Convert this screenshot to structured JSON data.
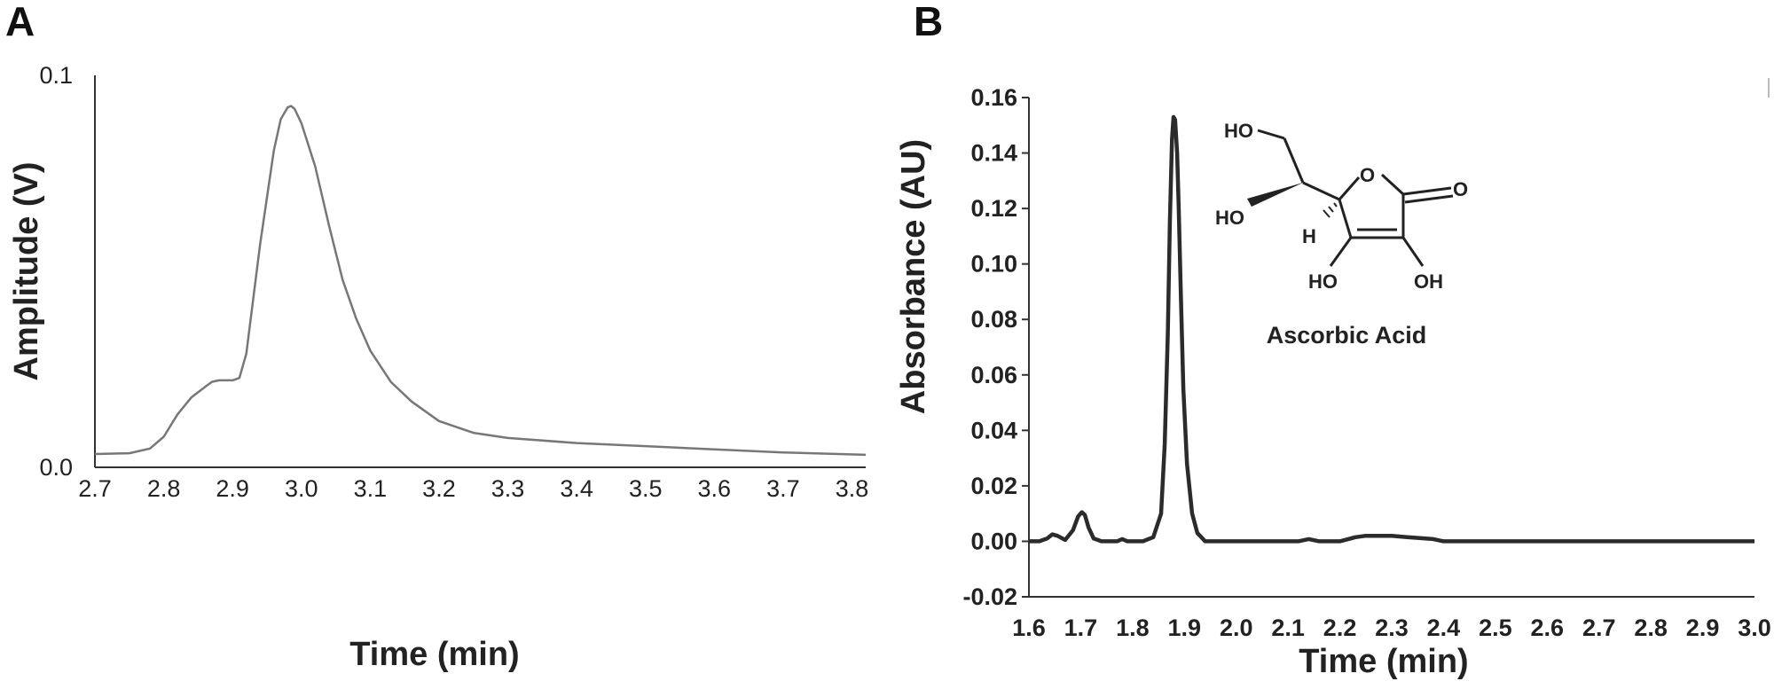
{
  "panels": {
    "a": {
      "letter": "A"
    },
    "b": {
      "letter": "B"
    }
  },
  "molecule": {
    "name": "Ascorbic Acid",
    "labels": {
      "ho_top": "HO",
      "ho_left": "HO",
      "h": "H",
      "o_ring": "O",
      "o_carbonyl": "O",
      "ho_bottom": "HO",
      "oh_bottom": "OH"
    }
  },
  "colors": {
    "trace_a": "#777777",
    "trace_b": "#2b2b2b",
    "axis": "#333333"
  },
  "chart_data": [
    {
      "type": "line",
      "panel": "A",
      "title": "",
      "xlabel": "Time (min)",
      "ylabel": "Amplitude (V)",
      "xlim": [
        2.7,
        3.82
      ],
      "ylim": [
        0.0,
        0.1
      ],
      "x_ticks": [
        "2.7",
        "2.8",
        "2.9",
        "3.0",
        "3.1",
        "3.2",
        "3.3",
        "3.4",
        "3.5",
        "3.6",
        "3.7",
        "3.8"
      ],
      "y_ticks": [
        "0.0",
        "0.1"
      ],
      "grid": false,
      "series": [
        {
          "x": [
            2.7,
            2.75,
            2.78,
            2.8,
            2.82,
            2.84,
            2.86,
            2.87,
            2.88,
            2.9,
            2.91,
            2.92,
            2.94,
            2.96,
            2.97,
            2.98,
            2.985,
            2.99,
            3.0,
            3.02,
            3.04,
            3.06,
            3.08,
            3.1,
            3.13,
            3.16,
            3.2,
            3.25,
            3.3,
            3.4,
            3.5,
            3.6,
            3.7,
            3.82
          ],
          "y": [
            0.0034,
            0.0036,
            0.0048,
            0.0078,
            0.0135,
            0.0178,
            0.0205,
            0.0218,
            0.0222,
            0.0222,
            0.0228,
            0.029,
            0.0568,
            0.0808,
            0.0888,
            0.0918,
            0.0922,
            0.0915,
            0.0878,
            0.0768,
            0.0618,
            0.0478,
            0.0378,
            0.0298,
            0.0218,
            0.0168,
            0.0118,
            0.0088,
            0.0075,
            0.0062,
            0.0054,
            0.0046,
            0.0038,
            0.0032
          ]
        }
      ]
    },
    {
      "type": "line",
      "panel": "B",
      "title": "",
      "xlabel": "Time (min)",
      "ylabel": "Absorbance (AU)",
      "xlim": [
        1.6,
        3.0
      ],
      "ylim": [
        -0.02,
        0.16
      ],
      "x_ticks": [
        "1.6",
        "1.7",
        "1.8",
        "1.9",
        "2.0",
        "2.1",
        "2.2",
        "2.3",
        "2.4",
        "2.5",
        "2.6",
        "2.7",
        "2.8",
        "2.9",
        "3.0"
      ],
      "y_ticks": [
        "-0.02",
        "0.00",
        "0.02",
        "0.04",
        "0.06",
        "0.08",
        "0.10",
        "0.12",
        "0.14",
        "0.16"
      ],
      "grid": false,
      "series": [
        {
          "x": [
            1.6,
            1.62,
            1.635,
            1.645,
            1.655,
            1.67,
            1.685,
            1.695,
            1.702,
            1.708,
            1.715,
            1.725,
            1.74,
            1.77,
            1.78,
            1.79,
            1.8,
            1.82,
            1.84,
            1.855,
            1.862,
            1.868,
            1.872,
            1.876,
            1.879,
            1.882,
            1.886,
            1.889,
            1.893,
            1.898,
            1.905,
            1.915,
            1.925,
            1.94,
            1.96,
            2.0,
            2.12,
            2.14,
            2.16,
            2.2,
            2.23,
            2.25,
            2.3,
            2.33,
            2.38,
            2.4,
            2.6,
            2.8,
            3.0
          ],
          "y": [
            0.0,
            0.0,
            0.001,
            0.0025,
            0.002,
            0.0005,
            0.004,
            0.009,
            0.0105,
            0.0095,
            0.005,
            0.001,
            0.0,
            0.0,
            0.0008,
            0.0,
            0.0,
            0.0,
            0.0015,
            0.01,
            0.035,
            0.075,
            0.115,
            0.145,
            0.153,
            0.152,
            0.14,
            0.12,
            0.09,
            0.055,
            0.028,
            0.01,
            0.003,
            0.0,
            0.0,
            0.0,
            0.0,
            0.0008,
            0.0,
            0.0,
            0.0015,
            0.002,
            0.002,
            0.0015,
            0.0008,
            0.0,
            0.0,
            0.0,
            0.0
          ]
        }
      ]
    }
  ]
}
